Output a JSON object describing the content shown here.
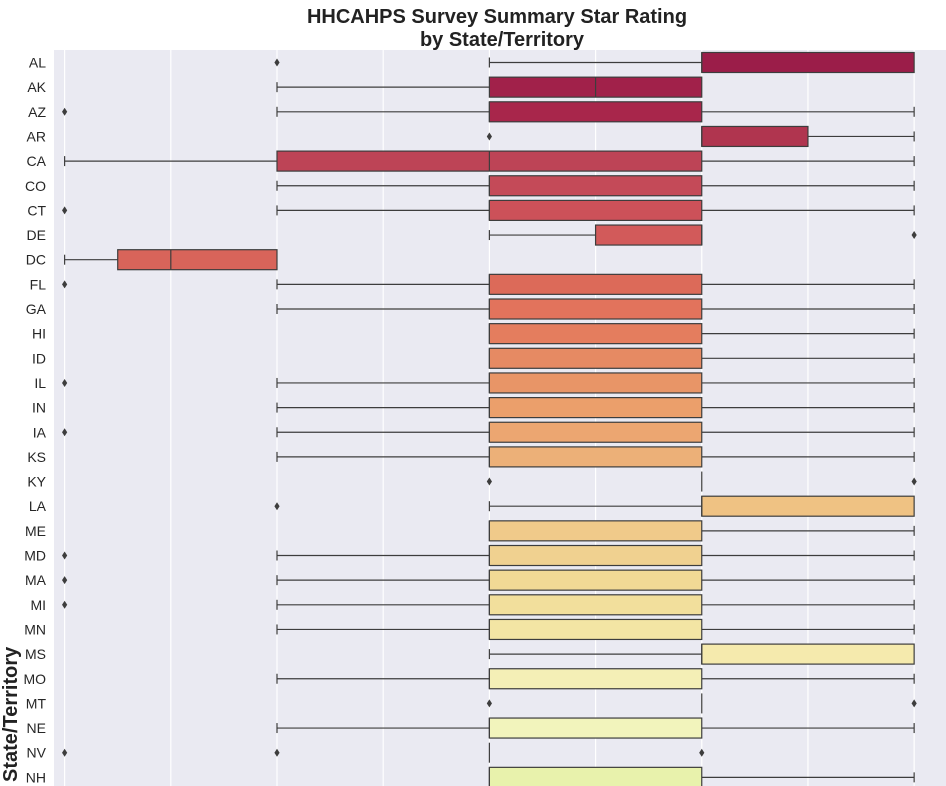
{
  "chart_data": {
    "type": "boxplot",
    "orientation": "horizontal",
    "title": "HHCAHPS Survey Summary Star Rating",
    "subtitle": "by State/Territory",
    "ylabel": "State/Territory",
    "xlabel": "",
    "xlim": [
      0.95,
      5.15
    ],
    "x_gridlines": [
      1,
      1.5,
      2,
      2.5,
      3,
      3.5,
      4,
      4.5,
      5
    ],
    "grid": true,
    "background": "#eaeaf2",
    "palette": "Spectral",
    "categories": [
      "AL",
      "AK",
      "AZ",
      "AR",
      "CA",
      "CO",
      "CT",
      "DE",
      "DC",
      "FL",
      "GA",
      "HI",
      "ID",
      "IL",
      "IN",
      "IA",
      "KS",
      "KY",
      "LA",
      "ME",
      "MD",
      "MA",
      "MI",
      "MN",
      "MS",
      "MO",
      "MT",
      "NE",
      "NV",
      "NH"
    ],
    "boxes": [
      {
        "label": "AL",
        "whisker_low": 3,
        "q1": 4,
        "median": 4,
        "q3": 5,
        "whisker_high": 5,
        "outliers": [
          2
        ],
        "color": "#9b1d49"
      },
      {
        "label": "AK",
        "whisker_low": 2,
        "q1": 3,
        "median": 3.5,
        "q3": 4,
        "whisker_high": 4,
        "outliers": [],
        "color": "#a1214a"
      },
      {
        "label": "AZ",
        "whisker_low": 2,
        "q1": 3,
        "median": 3,
        "q3": 4,
        "whisker_high": 5,
        "outliers": [
          1
        ],
        "color": "#a8264b"
      },
      {
        "label": "AR",
        "whisker_low": 4,
        "q1": 4,
        "median": 4,
        "q3": 4.5,
        "whisker_high": 5,
        "outliers": [
          3
        ],
        "color": "#b0354f"
      },
      {
        "label": "CA",
        "whisker_low": 1,
        "q1": 2,
        "median": 3,
        "q3": 4,
        "whisker_high": 5,
        "outliers": [],
        "color": "#bd4456"
      },
      {
        "label": "CO",
        "whisker_low": 2,
        "q1": 3,
        "median": 3,
        "q3": 4,
        "whisker_high": 5,
        "outliers": [],
        "color": "#c44a58"
      },
      {
        "label": "CT",
        "whisker_low": 2,
        "q1": 3,
        "median": 3,
        "q3": 4,
        "whisker_high": 5,
        "outliers": [
          1
        ],
        "color": "#cc5159"
      },
      {
        "label": "DE",
        "whisker_low": 3,
        "q1": 3.5,
        "median": 4,
        "q3": 4,
        "whisker_high": 4,
        "outliers": [
          5
        ],
        "color": "#d25a5a"
      },
      {
        "label": "DC",
        "whisker_low": 1,
        "q1": 1.25,
        "median": 1.5,
        "q3": 2,
        "whisker_high": 2,
        "outliers": [],
        "color": "#d8645a"
      },
      {
        "label": "FL",
        "whisker_low": 2,
        "q1": 3,
        "median": 3,
        "q3": 4,
        "whisker_high": 5,
        "outliers": [
          1
        ],
        "color": "#dc6a59"
      },
      {
        "label": "GA",
        "whisker_low": 2,
        "q1": 3,
        "median": 3,
        "q3": 4,
        "whisker_high": 5,
        "outliers": [],
        "color": "#e2735c"
      },
      {
        "label": "HI",
        "whisker_low": 3,
        "q1": 3,
        "median": 3,
        "q3": 4,
        "whisker_high": 5,
        "outliers": [],
        "color": "#e47d5e"
      },
      {
        "label": "ID",
        "whisker_low": 3,
        "q1": 3,
        "median": 3,
        "q3": 4,
        "whisker_high": 5,
        "outliers": [],
        "color": "#e68a63"
      },
      {
        "label": "IL",
        "whisker_low": 2,
        "q1": 3,
        "median": 3,
        "q3": 4,
        "whisker_high": 5,
        "outliers": [
          1
        ],
        "color": "#e89567"
      },
      {
        "label": "IN",
        "whisker_low": 2,
        "q1": 3,
        "median": 3,
        "q3": 4,
        "whisker_high": 5,
        "outliers": [],
        "color": "#eb9f6b"
      },
      {
        "label": "IA",
        "whisker_low": 2,
        "q1": 3,
        "median": 3,
        "q3": 4,
        "whisker_high": 5,
        "outliers": [
          1
        ],
        "color": "#eca671"
      },
      {
        "label": "KS",
        "whisker_low": 2,
        "q1": 3,
        "median": 3,
        "q3": 4,
        "whisker_high": 5,
        "outliers": [],
        "color": "#ecb078"
      },
      {
        "label": "KY",
        "whisker_low": 4,
        "q1": 4,
        "median": 4,
        "q3": 4,
        "whisker_high": 4,
        "outliers": [
          3,
          5
        ],
        "color": "#eeb87e"
      },
      {
        "label": "LA",
        "whisker_low": 3,
        "q1": 4,
        "median": 4,
        "q3": 5,
        "whisker_high": 5,
        "outliers": [
          2
        ],
        "color": "#efc283"
      },
      {
        "label": "ME",
        "whisker_low": 3,
        "q1": 3,
        "median": 3,
        "q3": 4,
        "whisker_high": 5,
        "outliers": [],
        "color": "#f0ca8a"
      },
      {
        "label": "MD",
        "whisker_low": 2,
        "q1": 3,
        "median": 3,
        "q3": 4,
        "whisker_high": 5,
        "outliers": [
          1
        ],
        "color": "#f0d190"
      },
      {
        "label": "MA",
        "whisker_low": 2,
        "q1": 3,
        "median": 3,
        "q3": 4,
        "whisker_high": 5,
        "outliers": [
          1
        ],
        "color": "#f1d995"
      },
      {
        "label": "MI",
        "whisker_low": 2,
        "q1": 3,
        "median": 3,
        "q3": 4,
        "whisker_high": 5,
        "outliers": [
          1
        ],
        "color": "#f2df9c"
      },
      {
        "label": "MN",
        "whisker_low": 2,
        "q1": 3,
        "median": 3,
        "q3": 4,
        "whisker_high": 5,
        "outliers": [],
        "color": "#f3e5a4"
      },
      {
        "label": "MS",
        "whisker_low": 3,
        "q1": 4,
        "median": 4,
        "q3": 5,
        "whisker_high": 5,
        "outliers": [],
        "color": "#f5eaad"
      },
      {
        "label": "MO",
        "whisker_low": 2,
        "q1": 3,
        "median": 3,
        "q3": 4,
        "whisker_high": 5,
        "outliers": [],
        "color": "#f4efb6"
      },
      {
        "label": "MT",
        "whisker_low": 4,
        "q1": 4,
        "median": 4,
        "q3": 4,
        "whisker_high": 4,
        "outliers": [
          3,
          5
        ],
        "color": "#f3f2ba"
      },
      {
        "label": "NE",
        "whisker_low": 2,
        "q1": 3,
        "median": 3,
        "q3": 4,
        "whisker_high": 5,
        "outliers": [],
        "color": "#f2f4bc"
      },
      {
        "label": "NV",
        "whisker_low": 3,
        "q1": 3,
        "median": 3,
        "q3": 3,
        "whisker_high": 3,
        "outliers": [
          1,
          2,
          4
        ],
        "color": "#eef4b8"
      },
      {
        "label": "NH",
        "whisker_low": 3,
        "q1": 3,
        "median": 3,
        "q3": 4,
        "whisker_high": 5,
        "outliers": [],
        "color": "#e8f2ac"
      }
    ]
  }
}
